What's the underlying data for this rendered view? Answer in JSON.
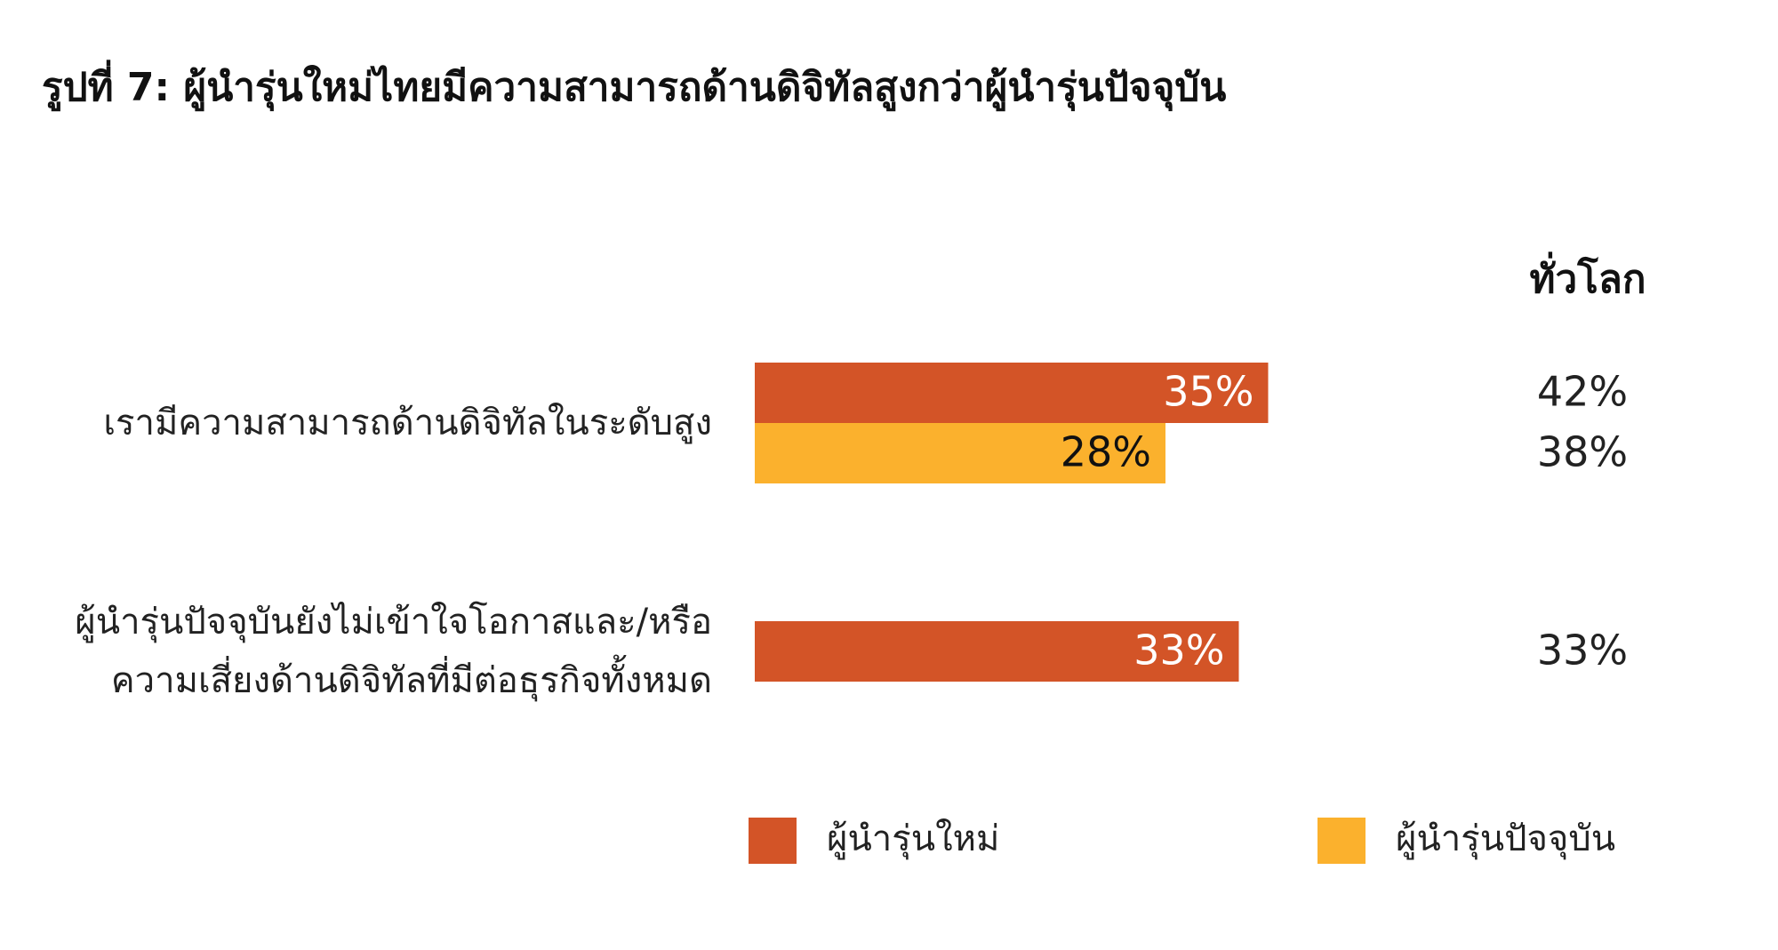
{
  "chart_data": {
    "type": "bar",
    "orientation": "horizontal",
    "title": "รูปที่ 7: ผู้นำรุ่นใหม่ไทยมีความสามารถด้านดิจิทัลสูงกว่าผู้นำรุ่นปัจจุบัน",
    "categories": [
      "เรามีความสามารถด้านดิจิทัลในระดับสูง",
      "ผู้นำรุ่นปัจจุบันยังไม่เข้าใจโอกาสและ/หรือ\nความเสี่ยงด้านดิจิทัลที่มีต่อธุรกิจทั้งหมด"
    ],
    "series": [
      {
        "name": "ผู้นำรุ่นใหม่",
        "color": "#d35427",
        "values": [
          35,
          33
        ],
        "value_labels": [
          "35%",
          "33%"
        ]
      },
      {
        "name": "ผู้นำรุ่นปัจจุบัน",
        "color": "#fbb12d",
        "values": [
          28,
          null
        ],
        "value_labels": [
          "28%",
          null
        ]
      }
    ],
    "global": {
      "title": "ทั่วโลก",
      "series": [
        {
          "values": [
            42,
            33
          ],
          "value_labels": [
            "42%",
            "33%"
          ]
        },
        {
          "values": [
            38,
            null
          ],
          "value_labels": [
            "38%",
            null
          ]
        }
      ]
    },
    "legend": "bottom"
  }
}
